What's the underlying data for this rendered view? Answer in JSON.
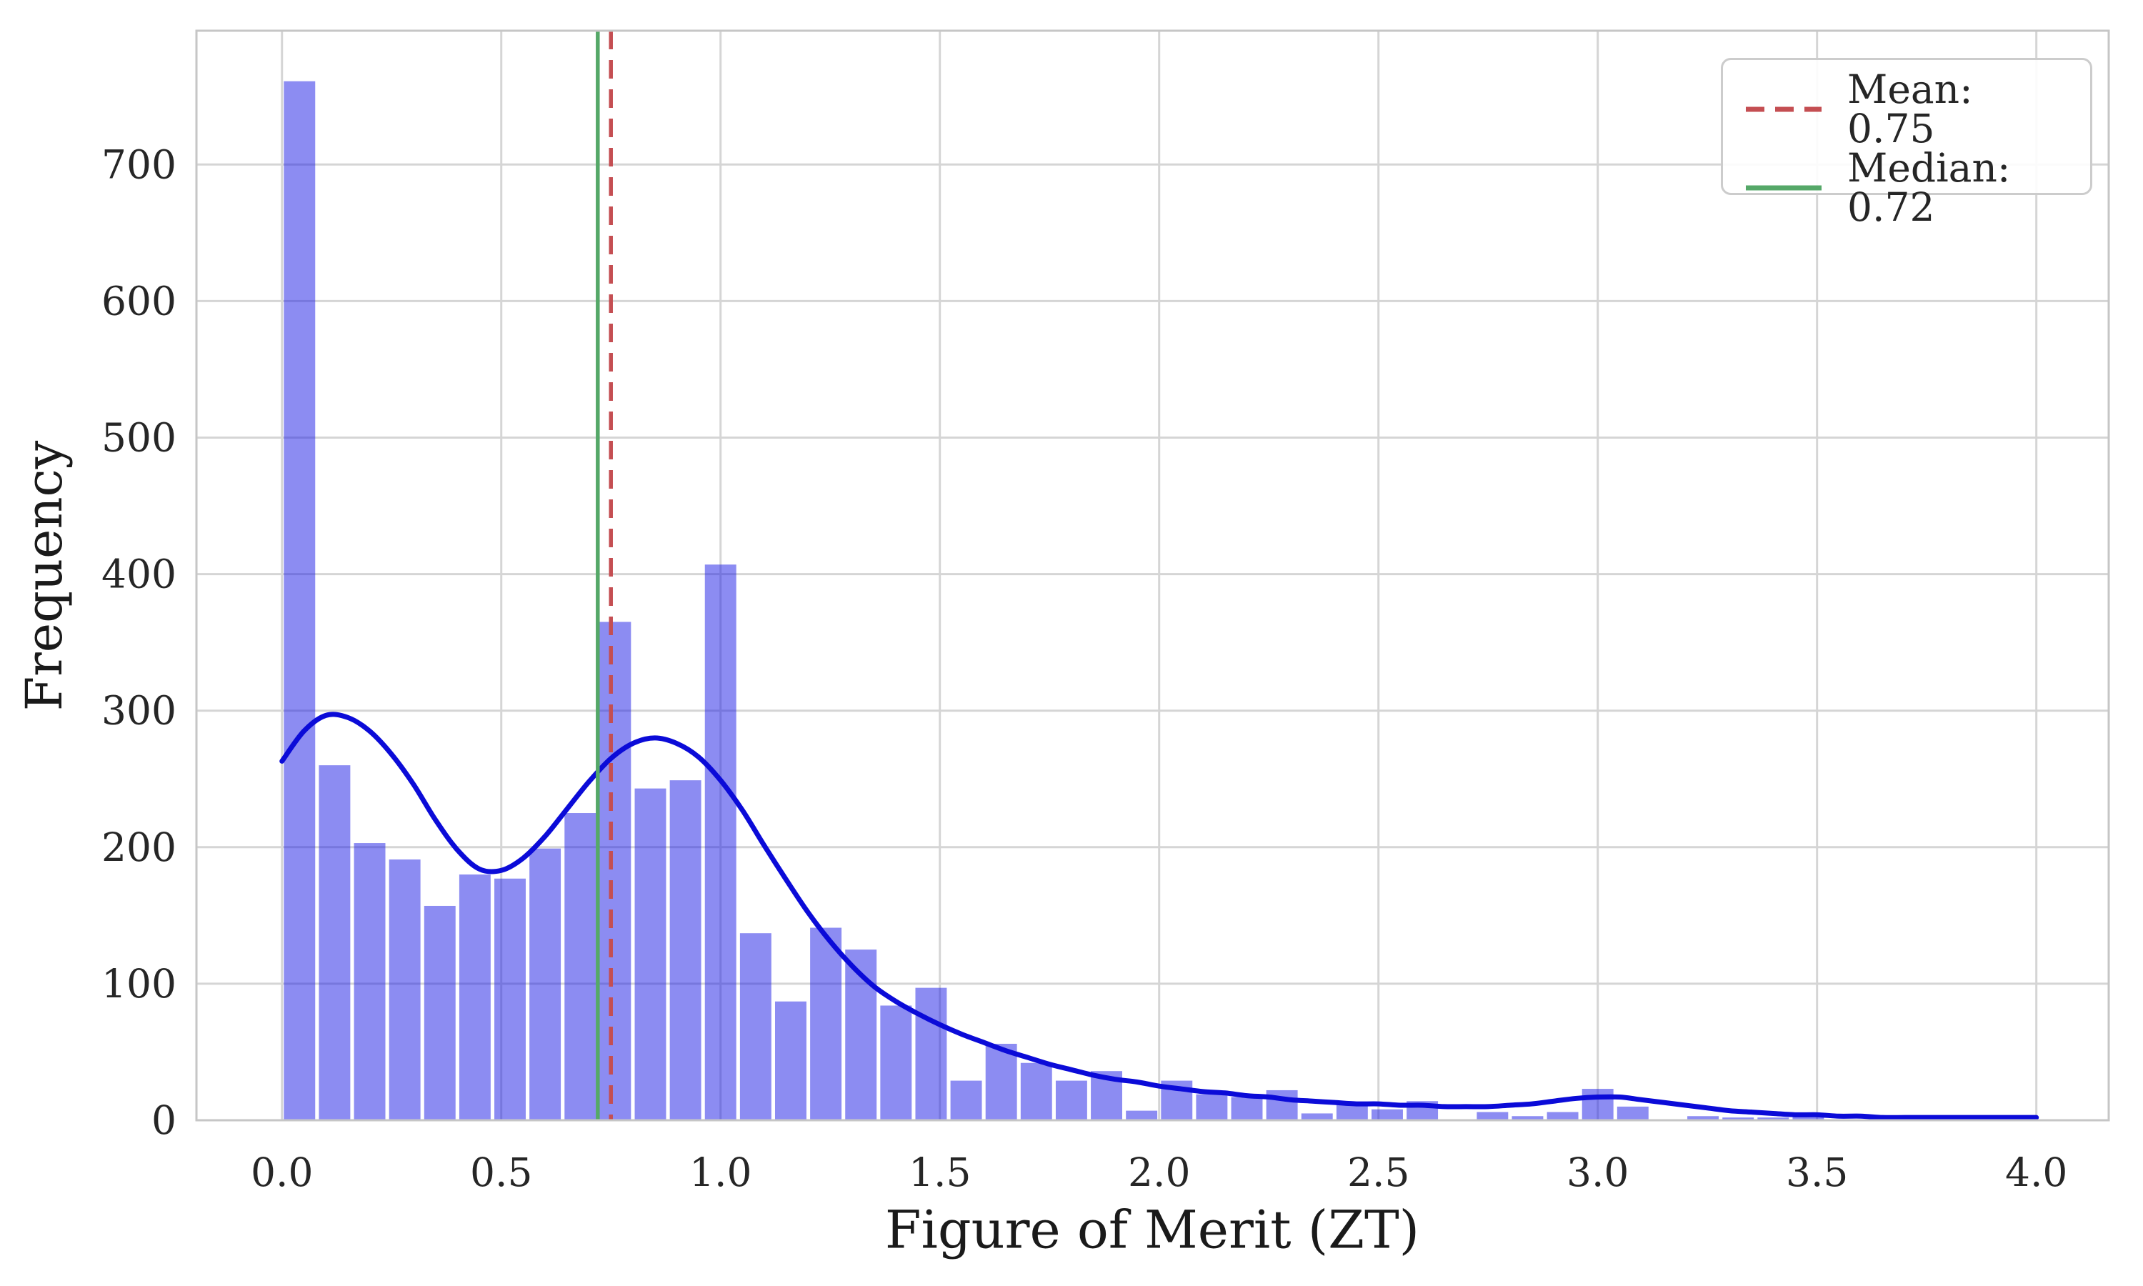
{
  "chart_data": {
    "type": "bar",
    "subtype": "histogram-with-kde",
    "title": "",
    "xlabel": "Figure of Merit (ZT)",
    "ylabel": "Frequency",
    "grid": true,
    "legend_position": "upper right",
    "xlim": [
      -0.195,
      4.165
    ],
    "ylim": [
      0,
      798
    ],
    "x_tick_values": [
      0.0,
      0.5,
      1.0,
      1.5,
      2.0,
      2.5,
      3.0,
      3.5,
      4.0
    ],
    "x_tick_labels": [
      "0.0",
      "0.5",
      "1.0",
      "1.5",
      "2.0",
      "2.5",
      "3.0",
      "3.5",
      "4.0"
    ],
    "y_tick_values": [
      0,
      100,
      200,
      300,
      400,
      500,
      600,
      700
    ],
    "y_tick_labels": [
      "0",
      "100",
      "200",
      "300",
      "400",
      "500",
      "600",
      "700"
    ],
    "bin_start": 0.0,
    "bin_width": 0.08,
    "bin_counts": [
      761,
      260,
      203,
      191,
      157,
      180,
      177,
      199,
      225,
      365,
      243,
      249,
      407,
      137,
      87,
      141,
      125,
      84,
      97,
      29,
      56,
      42,
      29,
      36,
      7,
      29,
      19,
      17,
      22,
      5,
      12,
      8,
      14,
      0,
      6,
      3,
      6,
      23,
      10,
      0,
      3,
      2,
      2,
      3,
      0,
      0,
      0,
      0,
      0,
      2
    ],
    "kde_line": {
      "x": [
        0.0,
        0.05,
        0.1,
        0.15,
        0.2,
        0.25,
        0.3,
        0.35,
        0.4,
        0.45,
        0.5,
        0.55,
        0.6,
        0.65,
        0.7,
        0.75,
        0.8,
        0.85,
        0.9,
        0.95,
        1.0,
        1.05,
        1.1,
        1.15,
        1.2,
        1.25,
        1.3,
        1.35,
        1.4,
        1.45,
        1.5,
        1.55,
        1.6,
        1.65,
        1.7,
        1.75,
        1.8,
        1.85,
        1.9,
        1.95,
        2.0,
        2.05,
        2.1,
        2.15,
        2.2,
        2.25,
        2.3,
        2.35,
        2.4,
        2.45,
        2.5,
        2.55,
        2.6,
        2.65,
        2.7,
        2.75,
        2.8,
        2.85,
        2.9,
        2.95,
        3.0,
        3.05,
        3.1,
        3.15,
        3.2,
        3.25,
        3.3,
        3.35,
        3.4,
        3.45,
        3.5,
        3.55,
        3.6,
        3.65,
        3.7,
        3.75,
        3.8,
        3.85,
        3.9,
        3.95,
        4.0
      ],
      "y": [
        263,
        285,
        296.5,
        295,
        285,
        268,
        246,
        220,
        198,
        184,
        183,
        192,
        208,
        228,
        248,
        265,
        276,
        280,
        276,
        266,
        249,
        227,
        201,
        176,
        152,
        131,
        113,
        98,
        87,
        78,
        70,
        63,
        57,
        51,
        46,
        41,
        37,
        33,
        30,
        28,
        25,
        23,
        21,
        20,
        18,
        17,
        15,
        14,
        13,
        12,
        12,
        11,
        11,
        10,
        10,
        10,
        11,
        12,
        14,
        16,
        17,
        17,
        15,
        13,
        11,
        9,
        7,
        6,
        5,
        4,
        4,
        3,
        3,
        2,
        2,
        2,
        2,
        2,
        2,
        2,
        2
      ]
    },
    "mean_line": {
      "value": 0.75,
      "label": "Mean: 0.75",
      "color": "#c44e52",
      "style": "dashed"
    },
    "median_line": {
      "value": 0.72,
      "label": "Median: 0.72",
      "color": "#55a868",
      "style": "solid"
    },
    "colors": {
      "bar_fill": "rgba(25,25,230,0.5)",
      "kde_line": "#0b0bd8",
      "grid": "#d5d5d5",
      "spine": "#c6c6c6",
      "tick_text": "#262626"
    }
  }
}
